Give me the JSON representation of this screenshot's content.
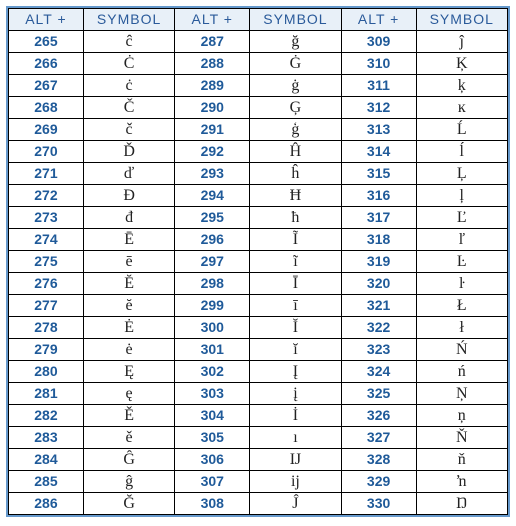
{
  "headers": {
    "alt": "ALT +",
    "symbol": "SYMBOL"
  },
  "colors": {
    "border_outer": "#6699cc",
    "border_inner": "#000000",
    "header_bg": "#e8f0f8",
    "header_text": "#2a5a9a",
    "alt_text": "#1f5a99",
    "symbol_text": "#222222",
    "background": "#ffffff"
  },
  "columns": [
    {
      "rows": [
        {
          "code": "265",
          "symbol": "ĉ"
        },
        {
          "code": "266",
          "symbol": "Ċ"
        },
        {
          "code": "267",
          "symbol": "ċ"
        },
        {
          "code": "268",
          "symbol": "Č"
        },
        {
          "code": "269",
          "symbol": "č"
        },
        {
          "code": "270",
          "symbol": "Ď"
        },
        {
          "code": "271",
          "symbol": "ď"
        },
        {
          "code": "272",
          "symbol": "Đ"
        },
        {
          "code": "273",
          "symbol": "đ"
        },
        {
          "code": "274",
          "symbol": "Ē"
        },
        {
          "code": "275",
          "symbol": "ē"
        },
        {
          "code": "276",
          "symbol": "Ĕ"
        },
        {
          "code": "277",
          "symbol": "ĕ"
        },
        {
          "code": "278",
          "symbol": "Ė"
        },
        {
          "code": "279",
          "symbol": "ė"
        },
        {
          "code": "280",
          "symbol": "Ę"
        },
        {
          "code": "281",
          "symbol": "ę"
        },
        {
          "code": "282",
          "symbol": "Ě"
        },
        {
          "code": "283",
          "symbol": "ě"
        },
        {
          "code": "284",
          "symbol": "Ĝ"
        },
        {
          "code": "285",
          "symbol": "ĝ"
        },
        {
          "code": "286",
          "symbol": "Ğ"
        }
      ]
    },
    {
      "rows": [
        {
          "code": "287",
          "symbol": "ğ"
        },
        {
          "code": "288",
          "symbol": "Ġ"
        },
        {
          "code": "289",
          "symbol": "ġ"
        },
        {
          "code": "290",
          "symbol": "Ģ"
        },
        {
          "code": "291",
          "symbol": "ģ"
        },
        {
          "code": "292",
          "symbol": "Ĥ"
        },
        {
          "code": "293",
          "symbol": "ĥ"
        },
        {
          "code": "294",
          "symbol": "Ħ"
        },
        {
          "code": "295",
          "symbol": "ħ"
        },
        {
          "code": "296",
          "symbol": "Ĩ"
        },
        {
          "code": "297",
          "symbol": "ĩ"
        },
        {
          "code": "298",
          "symbol": "Ī"
        },
        {
          "code": "299",
          "symbol": "ī"
        },
        {
          "code": "300",
          "symbol": "Ĭ"
        },
        {
          "code": "301",
          "symbol": "ĭ"
        },
        {
          "code": "302",
          "symbol": "Į"
        },
        {
          "code": "303",
          "symbol": "į"
        },
        {
          "code": "304",
          "symbol": "İ"
        },
        {
          "code": "305",
          "symbol": "ı"
        },
        {
          "code": "306",
          "symbol": "Ĳ"
        },
        {
          "code": "307",
          "symbol": "ĳ"
        },
        {
          "code": "308",
          "symbol": "Ĵ"
        }
      ]
    },
    {
      "rows": [
        {
          "code": "309",
          "symbol": "ĵ"
        },
        {
          "code": "310",
          "symbol": "Ķ"
        },
        {
          "code": "311",
          "symbol": "ķ"
        },
        {
          "code": "312",
          "symbol": "ĸ"
        },
        {
          "code": "313",
          "symbol": "Ĺ"
        },
        {
          "code": "314",
          "symbol": "ĺ"
        },
        {
          "code": "315",
          "symbol": "Ļ"
        },
        {
          "code": "316",
          "symbol": "ļ"
        },
        {
          "code": "317",
          "symbol": "Ľ"
        },
        {
          "code": "318",
          "symbol": "ľ"
        },
        {
          "code": "319",
          "symbol": "Ŀ"
        },
        {
          "code": "320",
          "symbol": "ŀ"
        },
        {
          "code": "321",
          "symbol": "Ł"
        },
        {
          "code": "322",
          "symbol": "ł"
        },
        {
          "code": "323",
          "symbol": "Ń"
        },
        {
          "code": "324",
          "symbol": "ń"
        },
        {
          "code": "325",
          "symbol": "Ņ"
        },
        {
          "code": "326",
          "symbol": "ņ"
        },
        {
          "code": "327",
          "symbol": "Ň"
        },
        {
          "code": "328",
          "symbol": "ň"
        },
        {
          "code": "329",
          "symbol": "ŉ"
        },
        {
          "code": "330",
          "symbol": "Ŋ"
        }
      ]
    }
  ]
}
